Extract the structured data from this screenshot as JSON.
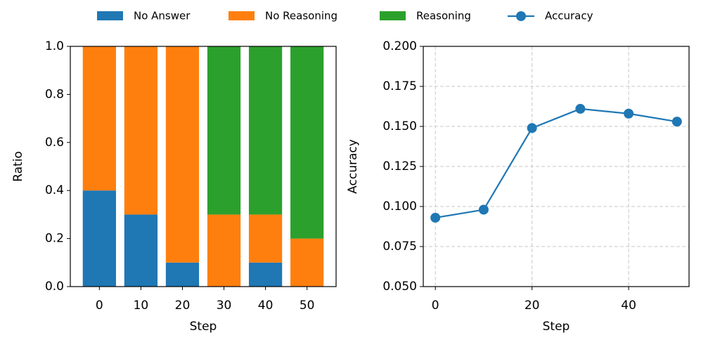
{
  "chart_data": [
    {
      "type": "bar",
      "stacked": true,
      "x": [
        0,
        10,
        20,
        30,
        40,
        50
      ],
      "xlim": [
        -7,
        57
      ],
      "xticks": [
        0,
        10,
        20,
        30,
        40,
        50
      ],
      "bar_width": 8,
      "xlabel": "Step",
      "ylabel": "Ratio",
      "ylim": [
        0,
        1
      ],
      "yticks": [
        {
          "value": 0,
          "label": "0.0"
        },
        {
          "value": 0.2,
          "label": "0.2"
        },
        {
          "value": 0.4,
          "label": "0.4"
        },
        {
          "value": 0.6,
          "label": "0.6"
        },
        {
          "value": 0.8,
          "label": "0.8"
        },
        {
          "value": 1,
          "label": "1.0"
        }
      ],
      "grid": false,
      "series": [
        {
          "name": "No Answer",
          "color": "#1f77b4",
          "values": [
            0.4,
            0.3,
            0.1,
            0,
            0.1,
            0
          ]
        },
        {
          "name": "No Reasoning",
          "color": "#ff7f0e",
          "values": [
            0.6,
            0.7,
            0.9,
            0.3,
            0.2,
            0.2
          ]
        },
        {
          "name": "Reasoning",
          "color": "#2ca02c",
          "values": [
            0,
            0,
            0,
            0.7,
            0.7,
            0.8
          ]
        }
      ]
    },
    {
      "type": "line",
      "x": [
        0,
        10,
        20,
        30,
        40,
        50
      ],
      "xlim": [
        -2.5,
        52.5
      ],
      "xticks": [
        0,
        20,
        40
      ],
      "xlabel": "Step",
      "ylabel": "Accuracy",
      "ylim": [
        0.05,
        0.2
      ],
      "yticks": [
        {
          "value": 0.05,
          "label": "0.050"
        },
        {
          "value": 0.075,
          "label": "0.075"
        },
        {
          "value": 0.1,
          "label": "0.100"
        },
        {
          "value": 0.125,
          "label": "0.125"
        },
        {
          "value": 0.15,
          "label": "0.150"
        },
        {
          "value": 0.175,
          "label": "0.175"
        },
        {
          "value": 0.2,
          "label": "0.200"
        }
      ],
      "grid": true,
      "series": [
        {
          "name": "Accuracy",
          "color": "#1f77b4",
          "values": [
            0.093,
            0.098,
            0.149,
            0.161,
            0.158,
            0.153
          ]
        }
      ]
    }
  ]
}
